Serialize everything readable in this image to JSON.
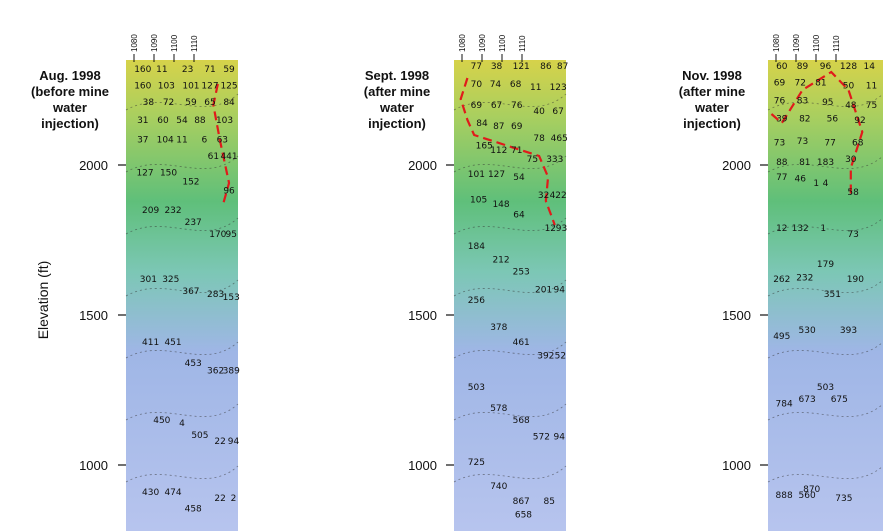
{
  "chart_data": {
    "type": "heatmap",
    "ylabel": "Elevation (ft)",
    "yticks": [
      2000,
      1500,
      1000
    ],
    "ylim": [
      780,
      2350
    ],
    "colors": [
      "#b7c4ee",
      "#9fb6e6",
      "#7cc7b5",
      "#5fbf7a",
      "#a9cf5f",
      "#d6d24a"
    ],
    "front_color": "#e01b1b",
    "panels": [
      {
        "title_lines": [
          "Aug. 1998",
          "(before mine",
          "water",
          "injection)"
        ],
        "xticks": [
          "1080",
          "1090",
          "1100",
          "1110"
        ],
        "front": [
          [
            0.82,
            2270
          ],
          [
            0.78,
            2200
          ],
          [
            0.84,
            2080
          ],
          [
            0.92,
            1940
          ],
          [
            0.86,
            1860
          ]
        ],
        "values": [
          {
            "x": 0.15,
            "y": 2310,
            "v": "160"
          },
          {
            "x": 0.32,
            "y": 2310,
            "v": "11"
          },
          {
            "x": 0.55,
            "y": 2310,
            "v": "23"
          },
          {
            "x": 0.75,
            "y": 2310,
            "v": "71"
          },
          {
            "x": 0.92,
            "y": 2310,
            "v": "59"
          },
          {
            "x": 0.15,
            "y": 2255,
            "v": "160"
          },
          {
            "x": 0.36,
            "y": 2255,
            "v": "103"
          },
          {
            "x": 0.58,
            "y": 2255,
            "v": "101"
          },
          {
            "x": 0.75,
            "y": 2255,
            "v": "127"
          },
          {
            "x": 0.92,
            "y": 2255,
            "v": "125"
          },
          {
            "x": 0.2,
            "y": 2200,
            "v": "38"
          },
          {
            "x": 0.38,
            "y": 2200,
            "v": "72"
          },
          {
            "x": 0.58,
            "y": 2200,
            "v": "59"
          },
          {
            "x": 0.75,
            "y": 2200,
            "v": "65"
          },
          {
            "x": 0.92,
            "y": 2200,
            "v": "84"
          },
          {
            "x": 0.15,
            "y": 2140,
            "v": "31"
          },
          {
            "x": 0.33,
            "y": 2140,
            "v": "60"
          },
          {
            "x": 0.5,
            "y": 2140,
            "v": "54"
          },
          {
            "x": 0.66,
            "y": 2140,
            "v": "88"
          },
          {
            "x": 0.88,
            "y": 2140,
            "v": "103"
          },
          {
            "x": 0.15,
            "y": 2075,
            "v": "37"
          },
          {
            "x": 0.35,
            "y": 2075,
            "v": "104"
          },
          {
            "x": 0.5,
            "y": 2075,
            "v": "11"
          },
          {
            "x": 0.7,
            "y": 2075,
            "v": "6"
          },
          {
            "x": 0.86,
            "y": 2075,
            "v": "63"
          },
          {
            "x": 0.78,
            "y": 2020,
            "v": "61"
          },
          {
            "x": 0.92,
            "y": 2020,
            "v": "441"
          },
          {
            "x": 0.17,
            "y": 1965,
            "v": "127"
          },
          {
            "x": 0.38,
            "y": 1965,
            "v": "150"
          },
          {
            "x": 0.58,
            "y": 1935,
            "v": "152"
          },
          {
            "x": 0.92,
            "y": 1905,
            "v": "96"
          },
          {
            "x": 0.22,
            "y": 1840,
            "v": "209"
          },
          {
            "x": 0.42,
            "y": 1840,
            "v": "232"
          },
          {
            "x": 0.6,
            "y": 1800,
            "v": "237"
          },
          {
            "x": 0.82,
            "y": 1760,
            "v": "170"
          },
          {
            "x": 0.94,
            "y": 1760,
            "v": "95"
          },
          {
            "x": 0.2,
            "y": 1610,
            "v": "301"
          },
          {
            "x": 0.4,
            "y": 1610,
            "v": "325"
          },
          {
            "x": 0.58,
            "y": 1570,
            "v": "367"
          },
          {
            "x": 0.8,
            "y": 1560,
            "v": "283"
          },
          {
            "x": 0.94,
            "y": 1550,
            "v": "153"
          },
          {
            "x": 0.22,
            "y": 1400,
            "v": "411"
          },
          {
            "x": 0.42,
            "y": 1400,
            "v": "451"
          },
          {
            "x": 0.6,
            "y": 1330,
            "v": "453"
          },
          {
            "x": 0.8,
            "y": 1305,
            "v": "362"
          },
          {
            "x": 0.94,
            "y": 1305,
            "v": "389"
          },
          {
            "x": 0.32,
            "y": 1140,
            "v": "450"
          },
          {
            "x": 0.5,
            "y": 1130,
            "v": "4"
          },
          {
            "x": 0.66,
            "y": 1090,
            "v": "505"
          },
          {
            "x": 0.84,
            "y": 1070,
            "v": "22"
          },
          {
            "x": 0.96,
            "y": 1070,
            "v": "94"
          },
          {
            "x": 0.22,
            "y": 900,
            "v": "430"
          },
          {
            "x": 0.42,
            "y": 900,
            "v": "474"
          },
          {
            "x": 0.6,
            "y": 845,
            "v": "458"
          },
          {
            "x": 0.84,
            "y": 880,
            "v": "22"
          },
          {
            "x": 0.96,
            "y": 880,
            "v": "2"
          }
        ]
      },
      {
        "title_lines": [
          "Sept. 1998",
          "(after mine",
          "water",
          "injection)"
        ],
        "xticks": [
          "1080",
          "1090",
          "1100",
          "1110"
        ],
        "front": [
          [
            0.12,
            2290
          ],
          [
            0.06,
            2220
          ],
          [
            0.12,
            2150
          ],
          [
            0.18,
            2100
          ],
          [
            0.76,
            2030
          ],
          [
            0.84,
            1960
          ],
          [
            0.82,
            1880
          ],
          [
            0.9,
            1800
          ]
        ],
        "values": [
          {
            "x": 0.2,
            "y": 2320,
            "v": "77"
          },
          {
            "x": 0.38,
            "y": 2320,
            "v": "38"
          },
          {
            "x": 0.6,
            "y": 2320,
            "v": "121"
          },
          {
            "x": 0.82,
            "y": 2320,
            "v": "86"
          },
          {
            "x": 0.97,
            "y": 2320,
            "v": "87"
          },
          {
            "x": 0.2,
            "y": 2260,
            "v": "70"
          },
          {
            "x": 0.37,
            "y": 2260,
            "v": "74"
          },
          {
            "x": 0.55,
            "y": 2260,
            "v": "68"
          },
          {
            "x": 0.73,
            "y": 2250,
            "v": "11"
          },
          {
            "x": 0.93,
            "y": 2250,
            "v": "123"
          },
          {
            "x": 0.2,
            "y": 2190,
            "v": "69"
          },
          {
            "x": 0.38,
            "y": 2190,
            "v": "67"
          },
          {
            "x": 0.56,
            "y": 2190,
            "v": "76"
          },
          {
            "x": 0.76,
            "y": 2170,
            "v": "40"
          },
          {
            "x": 0.93,
            "y": 2170,
            "v": "67"
          },
          {
            "x": 0.25,
            "y": 2130,
            "v": "84"
          },
          {
            "x": 0.4,
            "y": 2120,
            "v": "87"
          },
          {
            "x": 0.56,
            "y": 2120,
            "v": "69"
          },
          {
            "x": 0.76,
            "y": 2080,
            "v": "78"
          },
          {
            "x": 0.94,
            "y": 2080,
            "v": "465"
          },
          {
            "x": 0.27,
            "y": 2055,
            "v": "165"
          },
          {
            "x": 0.4,
            "y": 2040,
            "v": "112"
          },
          {
            "x": 0.56,
            "y": 2040,
            "v": "71"
          },
          {
            "x": 0.7,
            "y": 2010,
            "v": "75"
          },
          {
            "x": 0.9,
            "y": 2010,
            "v": "333"
          },
          {
            "x": 0.2,
            "y": 1960,
            "v": "101"
          },
          {
            "x": 0.38,
            "y": 1960,
            "v": "127"
          },
          {
            "x": 0.58,
            "y": 1950,
            "v": "54"
          },
          {
            "x": 0.8,
            "y": 1890,
            "v": "32"
          },
          {
            "x": 0.93,
            "y": 1890,
            "v": "422"
          },
          {
            "x": 0.22,
            "y": 1875,
            "v": "105"
          },
          {
            "x": 0.42,
            "y": 1860,
            "v": "148"
          },
          {
            "x": 0.58,
            "y": 1825,
            "v": "64"
          },
          {
            "x": 0.86,
            "y": 1780,
            "v": "12"
          },
          {
            "x": 0.96,
            "y": 1780,
            "v": "93"
          },
          {
            "x": 0.2,
            "y": 1720,
            "v": "184"
          },
          {
            "x": 0.42,
            "y": 1675,
            "v": "212"
          },
          {
            "x": 0.6,
            "y": 1635,
            "v": "253"
          },
          {
            "x": 0.8,
            "y": 1575,
            "v": "201"
          },
          {
            "x": 0.94,
            "y": 1575,
            "v": "94"
          },
          {
            "x": 0.2,
            "y": 1540,
            "v": "256"
          },
          {
            "x": 0.4,
            "y": 1450,
            "v": "378"
          },
          {
            "x": 0.6,
            "y": 1400,
            "v": "461"
          },
          {
            "x": 0.82,
            "y": 1355,
            "v": "392"
          },
          {
            "x": 0.95,
            "y": 1355,
            "v": "52"
          },
          {
            "x": 0.2,
            "y": 1250,
            "v": "503"
          },
          {
            "x": 0.4,
            "y": 1180,
            "v": "578"
          },
          {
            "x": 0.6,
            "y": 1140,
            "v": "568"
          },
          {
            "x": 0.78,
            "y": 1085,
            "v": "572"
          },
          {
            "x": 0.94,
            "y": 1085,
            "v": "94"
          },
          {
            "x": 0.2,
            "y": 1000,
            "v": "725"
          },
          {
            "x": 0.4,
            "y": 920,
            "v": "740"
          },
          {
            "x": 0.6,
            "y": 870,
            "v": "867"
          },
          {
            "x": 0.85,
            "y": 870,
            "v": "85"
          },
          {
            "x": 0.62,
            "y": 825,
            "v": "658"
          }
        ]
      },
      {
        "title_lines": [
          "Nov. 1998",
          "(after mine",
          "water",
          "injection)"
        ],
        "xticks": [
          "1080",
          "1090",
          "1100",
          "1110"
        ],
        "front": [
          [
            0.03,
            2170
          ],
          [
            0.12,
            2140
          ],
          [
            0.3,
            2250
          ],
          [
            0.55,
            2310
          ],
          [
            0.7,
            2250
          ],
          [
            0.82,
            2110
          ],
          [
            0.72,
            1990
          ],
          [
            0.72,
            1900
          ]
        ],
        "values": [
          {
            "x": 0.12,
            "y": 2320,
            "v": "60"
          },
          {
            "x": 0.3,
            "y": 2320,
            "v": "89"
          },
          {
            "x": 0.5,
            "y": 2320,
            "v": "96"
          },
          {
            "x": 0.7,
            "y": 2320,
            "v": "128"
          },
          {
            "x": 0.88,
            "y": 2320,
            "v": "14"
          },
          {
            "x": 0.1,
            "y": 2265,
            "v": "69"
          },
          {
            "x": 0.28,
            "y": 2265,
            "v": "72"
          },
          {
            "x": 0.46,
            "y": 2265,
            "v": "81"
          },
          {
            "x": 0.7,
            "y": 2255,
            "v": "50"
          },
          {
            "x": 0.9,
            "y": 2255,
            "v": "11"
          },
          {
            "x": 0.1,
            "y": 2205,
            "v": "76"
          },
          {
            "x": 0.3,
            "y": 2205,
            "v": "83"
          },
          {
            "x": 0.52,
            "y": 2200,
            "v": "95"
          },
          {
            "x": 0.72,
            "y": 2190,
            "v": "48"
          },
          {
            "x": 0.9,
            "y": 2190,
            "v": "75"
          },
          {
            "x": 0.12,
            "y": 2145,
            "v": "39"
          },
          {
            "x": 0.32,
            "y": 2145,
            "v": "82"
          },
          {
            "x": 0.56,
            "y": 2145,
            "v": "56"
          },
          {
            "x": 0.8,
            "y": 2140,
            "v": "92"
          },
          {
            "x": 0.1,
            "y": 2065,
            "v": "73"
          },
          {
            "x": 0.3,
            "y": 2070,
            "v": "73"
          },
          {
            "x": 0.54,
            "y": 2065,
            "v": "77"
          },
          {
            "x": 0.78,
            "y": 2065,
            "v": "68"
          },
          {
            "x": 0.5,
            "y": 2000,
            "v": "183"
          },
          {
            "x": 0.72,
            "y": 2010,
            "v": "30"
          },
          {
            "x": 0.12,
            "y": 2000,
            "v": "88"
          },
          {
            "x": 0.32,
            "y": 2000,
            "v": "81"
          },
          {
            "x": 0.12,
            "y": 1950,
            "v": "77"
          },
          {
            "x": 0.28,
            "y": 1945,
            "v": "46"
          },
          {
            "x": 0.42,
            "y": 1930,
            "v": "1"
          },
          {
            "x": 0.5,
            "y": 1930,
            "v": "4"
          },
          {
            "x": 0.74,
            "y": 1900,
            "v": "58"
          },
          {
            "x": 0.12,
            "y": 1780,
            "v": "12"
          },
          {
            "x": 0.28,
            "y": 1780,
            "v": "132"
          },
          {
            "x": 0.48,
            "y": 1780,
            "v": "1"
          },
          {
            "x": 0.74,
            "y": 1760,
            "v": "73"
          },
          {
            "x": 0.5,
            "y": 1660,
            "v": "179"
          },
          {
            "x": 0.12,
            "y": 1610,
            "v": "262"
          },
          {
            "x": 0.32,
            "y": 1615,
            "v": "232"
          },
          {
            "x": 0.76,
            "y": 1610,
            "v": "190"
          },
          {
            "x": 0.56,
            "y": 1560,
            "v": "351"
          },
          {
            "x": 0.12,
            "y": 1420,
            "v": "495"
          },
          {
            "x": 0.34,
            "y": 1440,
            "v": "530"
          },
          {
            "x": 0.7,
            "y": 1440,
            "v": "393"
          },
          {
            "x": 0.5,
            "y": 1250,
            "v": "503"
          },
          {
            "x": 0.14,
            "y": 1195,
            "v": "784"
          },
          {
            "x": 0.34,
            "y": 1210,
            "v": "673"
          },
          {
            "x": 0.62,
            "y": 1210,
            "v": "675"
          },
          {
            "x": 0.38,
            "y": 910,
            "v": "870"
          },
          {
            "x": 0.14,
            "y": 890,
            "v": "888"
          },
          {
            "x": 0.34,
            "y": 890,
            "v": "560"
          },
          {
            "x": 0.66,
            "y": 880,
            "v": "735"
          }
        ]
      }
    ]
  }
}
